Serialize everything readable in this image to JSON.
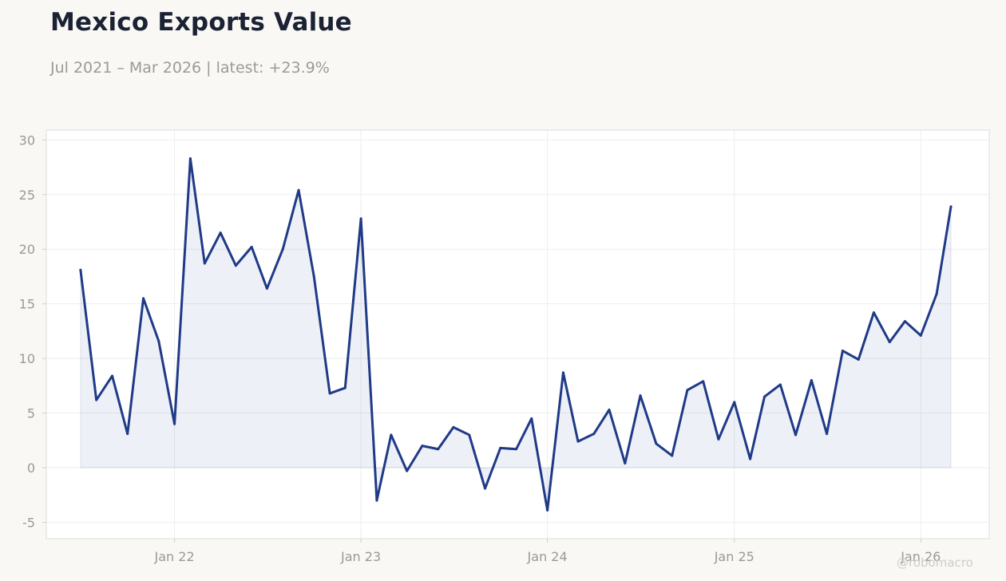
{
  "header": {
    "title": "Mexico Exports Value",
    "subtitle": "Jul 2021 – Mar 2026 | latest: +23.9%"
  },
  "watermark": "@robomacro",
  "colors": {
    "line": "#1f3a87",
    "fill": "#1f3a87",
    "background": "#f9f8f5",
    "plot_background": "#ffffff",
    "grid": "#eeeeee",
    "text": "#1a2233",
    "muted_text": "#999999"
  },
  "chart_data": {
    "type": "area",
    "title": "Mexico Exports Value",
    "subtitle": "Jul 2021 – Mar 2026 | latest: +23.9%",
    "xlabel": "",
    "ylabel": "",
    "ylim": [
      -6.5,
      30.9
    ],
    "xlim": [
      "2021-04-25",
      "2026-05-15"
    ],
    "grid": true,
    "x_ticks": [
      {
        "date": "2022-01",
        "label": "Jan 22"
      },
      {
        "date": "2023-01",
        "label": "Jan 23"
      },
      {
        "date": "2024-01",
        "label": "Jan 24"
      },
      {
        "date": "2025-01",
        "label": "Jan 25"
      },
      {
        "date": "2026-01",
        "label": "Jan 26"
      }
    ],
    "y_ticks": [
      -5,
      0,
      5,
      10,
      15,
      20,
      25,
      30
    ],
    "x": [
      "2021-07",
      "2021-08",
      "2021-09",
      "2021-10",
      "2021-11",
      "2021-12",
      "2022-01",
      "2022-02",
      "2022-03",
      "2022-04",
      "2022-05",
      "2022-06",
      "2022-07",
      "2022-08",
      "2022-09",
      "2022-10",
      "2022-11",
      "2022-12",
      "2023-01",
      "2023-02",
      "2023-03",
      "2023-04",
      "2023-05",
      "2023-06",
      "2023-07",
      "2023-08",
      "2023-09",
      "2023-10",
      "2023-11",
      "2023-12",
      "2024-01",
      "2024-02",
      "2024-03",
      "2024-04",
      "2024-05",
      "2024-06",
      "2024-07",
      "2024-08",
      "2024-09",
      "2024-10",
      "2024-11",
      "2024-12",
      "2025-01",
      "2025-02",
      "2025-03",
      "2025-04",
      "2025-05",
      "2025-06",
      "2025-07",
      "2025-08",
      "2025-09",
      "2025-10",
      "2025-11",
      "2025-12",
      "2026-01",
      "2026-02",
      "2026-03"
    ],
    "values": [
      18.1,
      6.2,
      8.4,
      3.1,
      15.5,
      11.6,
      4.0,
      28.3,
      18.7,
      21.5,
      18.5,
      20.2,
      16.4,
      20.0,
      25.4,
      17.5,
      6.8,
      7.3,
      22.8,
      -3.0,
      3.0,
      -0.3,
      2.0,
      1.7,
      3.7,
      3.0,
      -1.9,
      1.8,
      1.7,
      4.5,
      -3.9,
      8.7,
      2.4,
      3.1,
      5.3,
      0.4,
      6.6,
      2.2,
      1.1,
      7.1,
      7.9,
      2.6,
      6.0,
      0.8,
      6.5,
      7.6,
      3.0,
      8.0,
      3.1,
      10.7,
      9.9,
      14.2,
      11.5,
      13.4,
      12.1,
      15.9,
      23.9
    ]
  }
}
